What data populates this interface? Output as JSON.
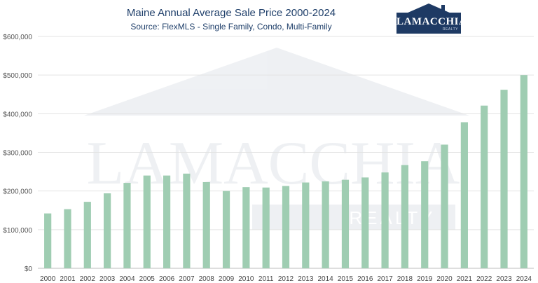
{
  "title": "Maine Annual Average Sale Price 2000-2024",
  "subtitle": "Source: FlexMLS - Single Family, Condo, Multi-Family",
  "logo": {
    "name": "LAMACCHIA",
    "tagline": "REALTY"
  },
  "watermark": {
    "name": "LAMACCHIA",
    "tagline": "REALTY"
  },
  "colors": {
    "bar": "#9fcdb2",
    "title": "#1f3f6a",
    "logo": "#1e3a64",
    "grid": "#e3e3e3"
  },
  "chart_data": {
    "type": "bar",
    "title": "Maine Annual Average Sale Price 2000-2024",
    "subtitle": "Source: FlexMLS - Single Family, Condo, Multi-Family",
    "categories": [
      "2000",
      "2001",
      "2002",
      "2003",
      "2004",
      "2005",
      "2006",
      "2007",
      "2008",
      "2009",
      "2010",
      "2011",
      "2012",
      "2013",
      "2014",
      "2015",
      "2016",
      "2017",
      "2018",
      "2019",
      "2020",
      "2021",
      "2022",
      "2023",
      "2024"
    ],
    "values": [
      142000,
      153000,
      172000,
      194000,
      221000,
      240000,
      240000,
      245000,
      223000,
      200000,
      210000,
      209000,
      213000,
      222000,
      225000,
      229000,
      235000,
      248000,
      267000,
      277000,
      320000,
      378000,
      421000,
      462000,
      500000
    ],
    "ylim": [
      0,
      600000
    ],
    "yticks": [
      0,
      100000,
      200000,
      300000,
      400000,
      500000,
      600000
    ],
    "ytick_labels": [
      "$0",
      "$100,000",
      "$200,000",
      "$300,000",
      "$400,000",
      "$500,000",
      "$600,000"
    ],
    "grid": true,
    "legend": "none"
  }
}
